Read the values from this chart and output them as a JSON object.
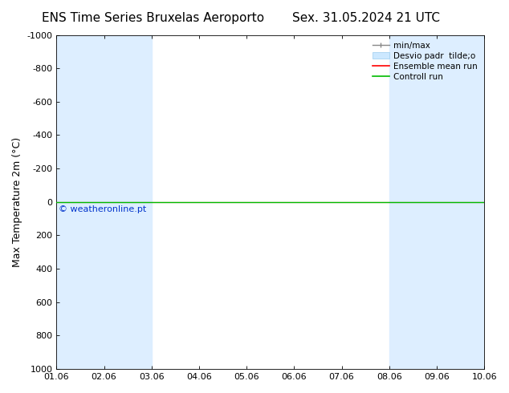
{
  "title_left": "ENS Time Series Bruxelas Aeroporto",
  "title_right": "Sex. 31.05.2024 21 UTC",
  "ylabel": "Max Temperature 2m (°C)",
  "xlabel_ticks": [
    "01.06",
    "02.06",
    "03.06",
    "04.06",
    "05.06",
    "06.06",
    "07.06",
    "08.06",
    "09.06",
    "10.06"
  ],
  "yticks": [
    -1000,
    -800,
    -600,
    -400,
    -200,
    0,
    200,
    400,
    600,
    800,
    1000
  ],
  "ylim": [
    -1000,
    1000
  ],
  "x_min": 0.0,
  "x_max": 9.0,
  "bg_color": "#ffffff",
  "plot_bg_color": "#ffffff",
  "shaded_bands": [
    [
      0.0,
      1.0
    ],
    [
      1.0,
      2.0
    ],
    [
      7.0,
      8.0
    ],
    [
      8.0,
      9.0
    ]
  ],
  "shaded_color": "#ddeeff",
  "green_line_y": 0,
  "green_line_color": "#00bb00",
  "red_line_y": 0,
  "red_line_color": "#ff0000",
  "watermark": "© weatheronline.pt",
  "watermark_color": "#0033cc",
  "legend_labels": [
    "min/max",
    "Desvio padr  tilde;o",
    "Ensemble mean run",
    "Controll run"
  ],
  "legend_colors_line": [
    "#aaaaaa",
    "#aaddff",
    "#ff0000",
    "#00bb00"
  ],
  "title_fontsize": 11,
  "tick_fontsize": 8,
  "ylabel_fontsize": 9,
  "legend_fontsize": 7.5
}
